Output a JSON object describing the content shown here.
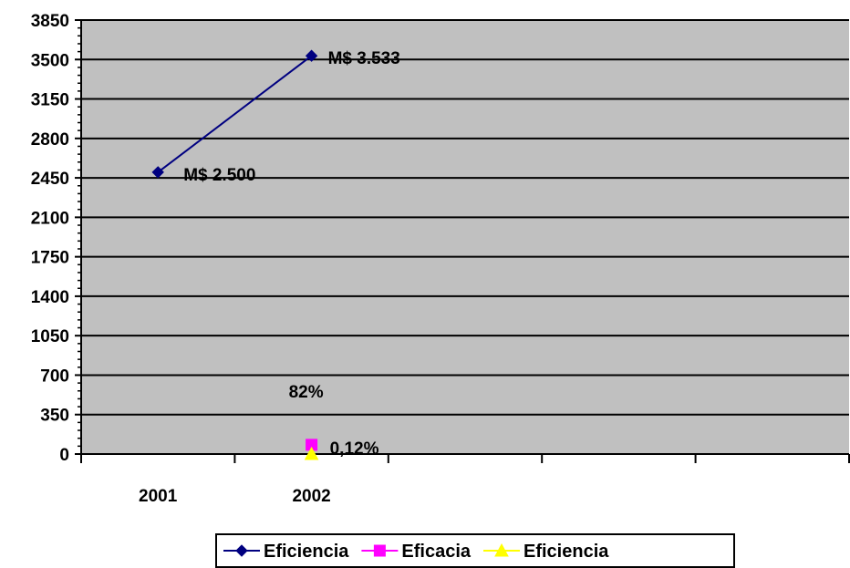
{
  "chart_data": {
    "type": "line",
    "categories": [
      "2001",
      "2002",
      "",
      "",
      ""
    ],
    "ylim": [
      0,
      3850
    ],
    "y_ticks": [
      0,
      350,
      700,
      1050,
      1400,
      1750,
      2100,
      2450,
      2800,
      3150,
      3500,
      3850
    ],
    "grid": true,
    "legend_position": "bottom",
    "plot_background": "#c0c0c0",
    "series": [
      {
        "name": "Eficiencia",
        "color": "#000080",
        "marker": "diamond",
        "values": [
          2500,
          3533,
          null,
          null,
          null
        ]
      },
      {
        "name": "Eficacia",
        "color": "#ff00ff",
        "marker": "square",
        "values": [
          null,
          82,
          null,
          null,
          null
        ]
      },
      {
        "name": "Eficiencia",
        "color": "#ffff00",
        "marker": "triangle",
        "values": [
          null,
          0.12,
          null,
          null,
          null
        ]
      }
    ],
    "annotations": [
      {
        "text": "M$ 2.500",
        "series": 0,
        "category": 0
      },
      {
        "text": "M$ 3.533",
        "series": 0,
        "category": 1
      },
      {
        "text": "82%",
        "series": 1,
        "category": 1
      },
      {
        "text": "0,12%",
        "series": 2,
        "category": 1
      }
    ]
  }
}
